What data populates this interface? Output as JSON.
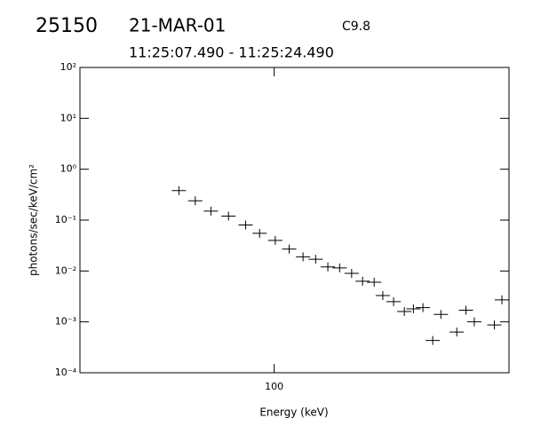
{
  "chart_data": {
    "type": "scatter",
    "title": "25150",
    "date": "21-MAR-01",
    "flare_class": "C9.8",
    "subtitle": "11:25:07.490 - 11:25:24.490",
    "x_label": "Energy (keV)",
    "y_label": "photons/sec/keV/cm²",
    "log_x": true,
    "log_y": true,
    "xlim": [
      20,
      700
    ],
    "ylim": [
      0.0001,
      100
    ],
    "xticks": [
      100
    ],
    "yticks": [
      {
        "value": 0.0001,
        "label": "10⁻⁴"
      },
      {
        "value": 0.001,
        "label": "10⁻³"
      },
      {
        "value": 0.01,
        "label": "10⁻²"
      },
      {
        "value": 0.1,
        "label": "10⁻¹"
      },
      {
        "value": 1,
        "label": "10⁰"
      },
      {
        "value": 10,
        "label": "10¹"
      },
      {
        "value": 100,
        "label": "10²"
      }
    ],
    "color": "#000000",
    "x": [
      45.4,
      52,
      59.2,
      68.5,
      78.9,
      88.6,
      100.9,
      113.2,
      127,
      141,
      156,
      172,
      190,
      208,
      229,
      246,
      269,
      294,
      317,
      343,
      372,
      398,
      454,
      490,
      525,
      620,
      660
    ],
    "values": [
      0.38,
      0.24,
      0.15,
      0.12,
      0.08,
      0.055,
      0.04,
      0.027,
      0.019,
      0.017,
      0.012,
      0.0115,
      0.009,
      0.0063,
      0.006,
      0.0033,
      0.0025,
      0.0016,
      0.0018,
      0.0019,
      0.00043,
      0.0014,
      0.00063,
      0.0017,
      0.001,
      0.00087,
      0.0027
    ]
  }
}
